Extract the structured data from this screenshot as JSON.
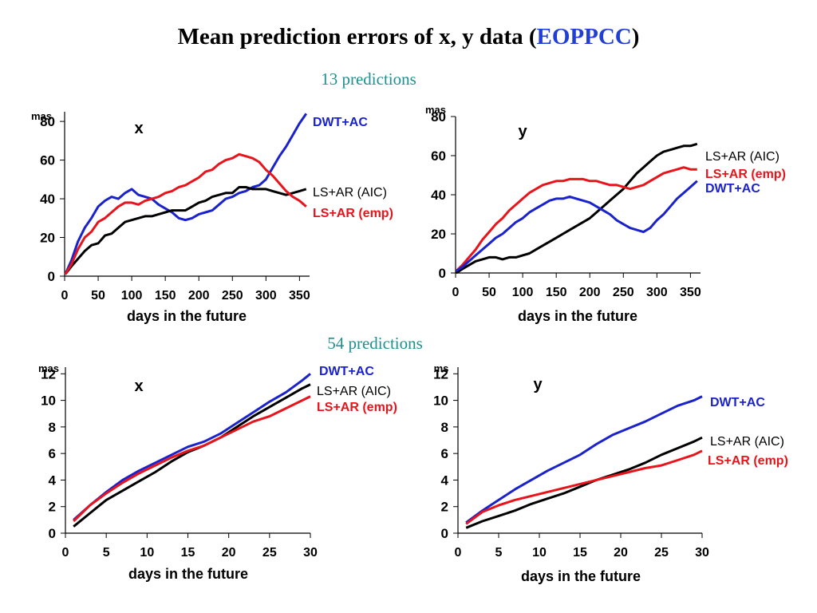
{
  "slide": {
    "title_main": "Mean prediction errors of x, y data (",
    "title_highlight": "EOPPCC",
    "title_end": ")",
    "highlight_color": "#1f3fd6",
    "subtitle_13": "13 predictions",
    "subtitle_54": "54 predictions"
  },
  "colors": {
    "DWT+AC": "#1a22cc",
    "LS+AR (AIC)": "#000000",
    "LS+AR (emp)": "#e8141c"
  },
  "chart_data": [
    {
      "type": "line",
      "panel": "top-left",
      "label": "x",
      "unit": "mas",
      "xlabel": "days in the future",
      "xlim": [
        0,
        365
      ],
      "ylim": [
        0,
        85
      ],
      "xticks": [
        0,
        50,
        100,
        150,
        200,
        250,
        300,
        350
      ],
      "yticks": [
        0,
        20,
        40,
        60,
        80
      ],
      "series": [
        {
          "name": "DWT+AC",
          "x": [
            1,
            10,
            20,
            30,
            40,
            50,
            60,
            70,
            80,
            90,
            100,
            110,
            120,
            130,
            140,
            150,
            160,
            170,
            180,
            190,
            200,
            210,
            220,
            230,
            240,
            250,
            260,
            270,
            280,
            290,
            300,
            310,
            320,
            330,
            340,
            350,
            360
          ],
          "y": [
            1,
            8,
            18,
            25,
            30,
            36,
            39,
            41,
            40,
            43,
            45,
            42,
            41,
            40,
            37,
            35,
            33,
            30,
            29,
            30,
            32,
            33,
            34,
            37,
            40,
            41,
            43,
            44,
            46,
            47,
            50,
            56,
            62,
            67,
            73,
            79,
            84
          ]
        },
        {
          "name": "LS+AR (AIC)",
          "x": [
            1,
            10,
            20,
            30,
            40,
            50,
            60,
            70,
            80,
            90,
            100,
            110,
            120,
            130,
            140,
            150,
            160,
            170,
            180,
            190,
            200,
            210,
            220,
            230,
            240,
            250,
            260,
            270,
            280,
            290,
            300,
            310,
            320,
            330,
            340,
            350,
            360
          ],
          "y": [
            1,
            5,
            9,
            13,
            16,
            17,
            21,
            22,
            25,
            28,
            29,
            30,
            31,
            31,
            32,
            33,
            34,
            34,
            34,
            36,
            38,
            39,
            41,
            42,
            43,
            43,
            46,
            46,
            45,
            45,
            45,
            44,
            43,
            42,
            43,
            44,
            45
          ]
        },
        {
          "name": "LS+AR (emp)",
          "x": [
            1,
            10,
            20,
            30,
            40,
            50,
            60,
            70,
            80,
            90,
            100,
            110,
            120,
            130,
            140,
            150,
            160,
            170,
            180,
            190,
            200,
            210,
            220,
            230,
            240,
            250,
            260,
            270,
            280,
            290,
            300,
            310,
            320,
            330,
            340,
            350,
            360
          ],
          "y": [
            1,
            6,
            14,
            20,
            23,
            28,
            30,
            33,
            36,
            38,
            38,
            37,
            39,
            40,
            41,
            43,
            44,
            46,
            47,
            49,
            51,
            54,
            55,
            58,
            60,
            61,
            63,
            62,
            61,
            59,
            55,
            52,
            48,
            44,
            41,
            39,
            36
          ]
        }
      ],
      "legend": [
        "DWT+AC",
        "LS+AR (AIC)",
        "LS+AR (emp)"
      ]
    },
    {
      "type": "line",
      "panel": "top-right",
      "label": "y",
      "unit": "mas",
      "xlabel": "days in the future",
      "xlim": [
        0,
        365
      ],
      "ylim": [
        0,
        80
      ],
      "xticks": [
        0,
        50,
        100,
        150,
        200,
        250,
        300,
        350
      ],
      "yticks": [
        0,
        20,
        40,
        60,
        80
      ],
      "series": [
        {
          "name": "LS+AR (AIC)",
          "x": [
            1,
            10,
            20,
            30,
            40,
            50,
            60,
            70,
            80,
            90,
            100,
            110,
            120,
            130,
            140,
            150,
            160,
            170,
            180,
            190,
            200,
            210,
            220,
            230,
            240,
            250,
            260,
            270,
            280,
            290,
            300,
            310,
            320,
            330,
            340,
            350,
            360
          ],
          "y": [
            0,
            2,
            4,
            6,
            7,
            8,
            8,
            7,
            8,
            8,
            9,
            10,
            12,
            14,
            16,
            18,
            20,
            22,
            24,
            26,
            28,
            31,
            34,
            37,
            40,
            43,
            47,
            51,
            54,
            57,
            60,
            62,
            63,
            64,
            65,
            65,
            66
          ]
        },
        {
          "name": "LS+AR (emp)",
          "x": [
            1,
            10,
            20,
            30,
            40,
            50,
            60,
            70,
            80,
            90,
            100,
            110,
            120,
            130,
            140,
            150,
            160,
            170,
            180,
            190,
            200,
            210,
            220,
            230,
            240,
            250,
            260,
            270,
            280,
            290,
            300,
            310,
            320,
            330,
            340,
            350,
            360
          ],
          "y": [
            1,
            4,
            8,
            12,
            17,
            21,
            25,
            28,
            32,
            35,
            38,
            41,
            43,
            45,
            46,
            47,
            47,
            48,
            48,
            48,
            47,
            47,
            46,
            45,
            45,
            44,
            43,
            44,
            45,
            47,
            49,
            51,
            52,
            53,
            54,
            53,
            53
          ]
        },
        {
          "name": "DWT+AC",
          "x": [
            1,
            10,
            20,
            30,
            40,
            50,
            60,
            70,
            80,
            90,
            100,
            110,
            120,
            130,
            140,
            150,
            160,
            170,
            180,
            190,
            200,
            210,
            220,
            230,
            240,
            250,
            260,
            270,
            280,
            290,
            300,
            310,
            320,
            330,
            340,
            350,
            360
          ],
          "y": [
            1,
            3,
            6,
            9,
            12,
            15,
            18,
            20,
            23,
            26,
            28,
            31,
            33,
            35,
            37,
            38,
            38,
            39,
            38,
            37,
            36,
            34,
            32,
            30,
            27,
            25,
            23,
            22,
            21,
            23,
            27,
            30,
            34,
            38,
            41,
            44,
            47
          ]
        }
      ],
      "legend": [
        "LS+AR (AIC)",
        "LS+AR (emp)",
        "DWT+AC"
      ]
    },
    {
      "type": "line",
      "panel": "bottom-left",
      "label": "x",
      "unit": "mas",
      "xlabel": "days in the future",
      "xlim": [
        0,
        30
      ],
      "ylim": [
        0,
        12.5
      ],
      "xticks": [
        0,
        5,
        10,
        15,
        20,
        25,
        30
      ],
      "yticks": [
        0,
        2,
        4,
        6,
        8,
        10,
        12
      ],
      "series": [
        {
          "name": "DWT+AC",
          "x": [
            1,
            3,
            5,
            7,
            9,
            11,
            13,
            15,
            17,
            19,
            21,
            23,
            25,
            27,
            29,
            30
          ],
          "y": [
            1.0,
            2.1,
            3.1,
            4.0,
            4.7,
            5.3,
            5.9,
            6.5,
            6.9,
            7.5,
            8.3,
            9.1,
            9.9,
            10.6,
            11.5,
            12.0
          ]
        },
        {
          "name": "LS+AR (AIC)",
          "x": [
            1,
            3,
            5,
            7,
            9,
            11,
            13,
            15,
            17,
            19,
            21,
            23,
            25,
            27,
            29,
            30
          ],
          "y": [
            0.5,
            1.5,
            2.5,
            3.2,
            3.9,
            4.6,
            5.4,
            6.1,
            6.6,
            7.2,
            8.0,
            8.8,
            9.5,
            10.2,
            10.9,
            11.2
          ]
        },
        {
          "name": "LS+AR (emp)",
          "x": [
            1,
            3,
            5,
            7,
            9,
            11,
            13,
            15,
            17,
            19,
            21,
            23,
            25,
            27,
            29,
            30
          ],
          "y": [
            0.9,
            2.1,
            3.0,
            3.8,
            4.5,
            5.1,
            5.7,
            6.2,
            6.6,
            7.2,
            7.8,
            8.4,
            8.8,
            9.4,
            10.0,
            10.3
          ]
        }
      ],
      "legend": [
        "DWT+AC",
        "LS+AR (AIC)",
        "LS+AR (emp)"
      ]
    },
    {
      "type": "line",
      "panel": "bottom-right",
      "label": "y",
      "unit": "ms",
      "xlabel": "days in the future",
      "xlim": [
        0,
        30
      ],
      "ylim": [
        0,
        12.5
      ],
      "xticks": [
        0,
        5,
        10,
        15,
        20,
        25,
        30
      ],
      "yticks": [
        0,
        2,
        4,
        6,
        8,
        10,
        12
      ],
      "series": [
        {
          "name": "DWT+AC",
          "x": [
            1,
            3,
            5,
            7,
            9,
            11,
            13,
            15,
            17,
            19,
            21,
            23,
            25,
            27,
            29,
            30
          ],
          "y": [
            0.8,
            1.7,
            2.5,
            3.3,
            4.0,
            4.7,
            5.3,
            5.9,
            6.7,
            7.4,
            7.9,
            8.4,
            9.0,
            9.6,
            10.0,
            10.3
          ]
        },
        {
          "name": "LS+AR (AIC)",
          "x": [
            1,
            3,
            5,
            7,
            9,
            11,
            13,
            15,
            17,
            19,
            21,
            23,
            25,
            27,
            29,
            30
          ],
          "y": [
            0.4,
            0.9,
            1.3,
            1.7,
            2.2,
            2.6,
            3.0,
            3.5,
            4.0,
            4.4,
            4.8,
            5.3,
            5.9,
            6.4,
            6.9,
            7.2
          ]
        },
        {
          "name": "LS+AR (emp)",
          "x": [
            1,
            3,
            5,
            7,
            9,
            11,
            13,
            15,
            17,
            19,
            21,
            23,
            25,
            27,
            29,
            30
          ],
          "y": [
            0.7,
            1.6,
            2.1,
            2.5,
            2.8,
            3.1,
            3.4,
            3.7,
            4.0,
            4.3,
            4.6,
            4.9,
            5.1,
            5.5,
            5.9,
            6.2
          ]
        }
      ],
      "legend": [
        "DWT+AC",
        "LS+AR (AIC)",
        "LS+AR (emp)"
      ]
    }
  ]
}
